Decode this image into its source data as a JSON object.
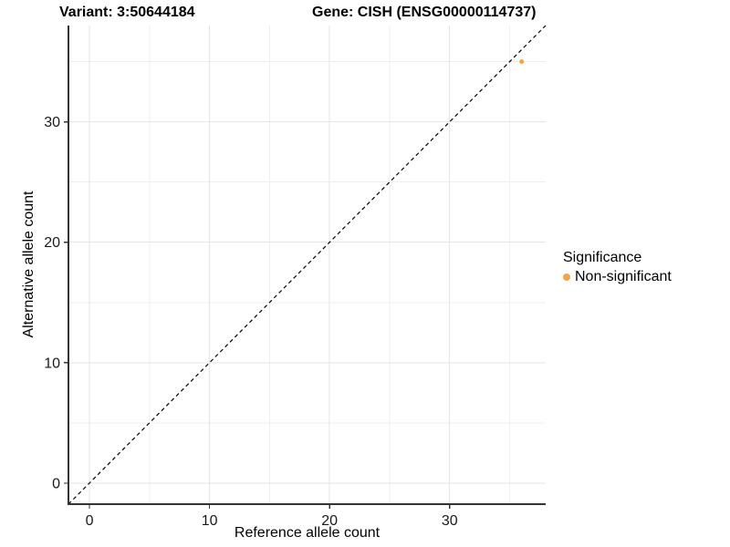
{
  "header": {
    "variant_title": "Variant: 3:50644184",
    "gene_title": "Gene: CISH (ENSG00000114737)"
  },
  "chart_data": {
    "type": "scatter",
    "title_left": "Variant: 3:50644184",
    "title_right": "Gene: CISH (ENSG00000114737)",
    "xlabel": "Reference allele count",
    "ylabel": "Alternative allele count",
    "xlim": [
      -1.75,
      38.0
    ],
    "ylim": [
      -1.75,
      38.0
    ],
    "x_ticks": [
      0,
      10,
      20,
      30
    ],
    "y_ticks": [
      0,
      10,
      20,
      30
    ],
    "x_minor_ticks": [
      5,
      15,
      25,
      35
    ],
    "y_minor_ticks": [
      5,
      15,
      25,
      35
    ],
    "grid": "major and minor, light gray, on white panel",
    "points": [
      {
        "x": 36,
        "y": 35,
        "series": "Non-significant"
      }
    ],
    "reference_line": {
      "type": "identity y=x",
      "slope": 1,
      "intercept": 0,
      "style": "dashed",
      "color": "#000000"
    },
    "legend": {
      "title": "Significance",
      "position": "right",
      "entries": [
        {
          "label": "Non-significant",
          "color": "#F9A242"
        }
      ]
    },
    "colors": {
      "point": "#F9A242",
      "grid_major": "#E5E5E5",
      "grid_minor": "#EFEFEF",
      "axis_line": "#333333",
      "tick_mark": "#333333",
      "tick_text": "#1a1a1a",
      "dashed_line": "#000000"
    }
  }
}
